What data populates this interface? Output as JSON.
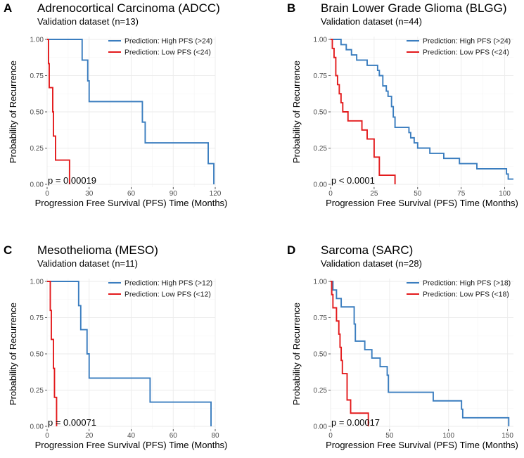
{
  "colors": {
    "high": "#3a7dbf",
    "low": "#e31a1c"
  },
  "ylabel": "Probability of Recurrence",
  "xlabel": "Progression Free Survival (PFS) Time (Months)",
  "chart_data": [
    {
      "type": "line",
      "letter": "A",
      "title": "Adrenocortical Carcinoma (ADCC)",
      "subtitle": "Validation dataset (n=13)",
      "xlabel": "Progression Free Survival (PFS) Time (Months)",
      "ylabel": "Probability of Recurrence",
      "xlim": [
        0,
        120
      ],
      "ylim": [
        0,
        1
      ],
      "xticks": [
        0,
        30,
        60,
        90,
        120
      ],
      "xtick_labels": [
        "0",
        "30",
        "60",
        "90",
        "120"
      ],
      "yticks": [
        0,
        0.25,
        0.5,
        0.75,
        1.0
      ],
      "ytick_labels": [
        "0.00",
        "0.25",
        "0.50",
        "0.75",
        "1.00"
      ],
      "pvalue": "p = 0.00019",
      "legend_position": "top-right",
      "series": [
        {
          "name": "Prediction: High PFS (>24)",
          "color_key": "high",
          "x": [
            0,
            25,
            29,
            30,
            68,
            70,
            115,
            119
          ],
          "y": [
            1.0,
            0.857,
            0.714,
            0.571,
            0.429,
            0.286,
            0.143,
            0.0
          ]
        },
        {
          "name": "Prediction: Low PFS (<24)",
          "color_key": "low",
          "x": [
            0,
            1,
            1.5,
            2,
            4,
            4.5,
            5,
            6,
            16
          ],
          "y": [
            1.0,
            0.833,
            0.667,
            0.667,
            0.5,
            0.333,
            0.333,
            0.167,
            0.0
          ]
        }
      ]
    },
    {
      "type": "line",
      "letter": "B",
      "title": "Brain Lower Grade Glioma (BLGG)",
      "subtitle": "Validation dataset (n=44)",
      "xlabel": "Progression Free Survival (PFS) Time (Months)",
      "ylabel": "Probability of Recurrence",
      "xlim": [
        0,
        105
      ],
      "ylim": [
        0,
        1
      ],
      "xticks": [
        0,
        25,
        50,
        75,
        100
      ],
      "xtick_labels": [
        "0",
        "25",
        "50",
        "75",
        "100"
      ],
      "yticks": [
        0,
        0.25,
        0.5,
        0.75,
        1.0
      ],
      "ytick_labels": [
        "0.00",
        "0.25",
        "0.50",
        "0.75",
        "1.00"
      ],
      "pvalue": "p < 0.0001",
      "legend_position": "top-right",
      "series": [
        {
          "name": "Prediction: High PFS (>24)",
          "color_key": "high",
          "x": [
            0,
            6,
            9,
            12,
            15,
            21,
            27,
            28,
            30,
            32,
            33,
            35,
            36,
            37,
            45,
            46,
            48,
            50,
            57,
            65,
            74,
            84,
            101,
            102,
            105
          ],
          "y": [
            1.0,
            0.964,
            0.929,
            0.893,
            0.857,
            0.821,
            0.786,
            0.75,
            0.679,
            0.643,
            0.607,
            0.536,
            0.464,
            0.393,
            0.357,
            0.321,
            0.286,
            0.25,
            0.214,
            0.179,
            0.143,
            0.107,
            0.071,
            0.036,
            0.036
          ]
        },
        {
          "name": "Prediction: Low PFS (<24)",
          "color_key": "low",
          "x": [
            0,
            1,
            2,
            3,
            4,
            5,
            6,
            7,
            8,
            10,
            13,
            18,
            21,
            25,
            28,
            37
          ],
          "y": [
            1.0,
            0.938,
            0.875,
            0.75,
            0.688,
            0.625,
            0.563,
            0.5,
            0.5,
            0.438,
            0.438,
            0.375,
            0.313,
            0.188,
            0.063,
            0.0
          ]
        }
      ]
    },
    {
      "type": "line",
      "letter": "C",
      "title": "Mesothelioma (MESO)",
      "subtitle": "Validation dataset (n=11)",
      "xlabel": "Progression Free Survival (PFS) Time (Months)",
      "ylabel": "Probability of Recurrence",
      "xlim": [
        0,
        80
      ],
      "ylim": [
        0,
        1
      ],
      "xticks": [
        0,
        20,
        40,
        60,
        80
      ],
      "xtick_labels": [
        "0",
        "20",
        "40",
        "60",
        "80"
      ],
      "yticks": [
        0,
        0.25,
        0.5,
        0.75,
        1.0
      ],
      "ytick_labels": [
        "0.00",
        "0.25",
        "0.50",
        "0.75",
        "1.00"
      ],
      "pvalue": "p = 0.00071",
      "legend_position": "top-right",
      "series": [
        {
          "name": "Prediction: High PFS (>12)",
          "color_key": "high",
          "x": [
            0,
            15,
            16,
            19,
            20,
            49,
            78
          ],
          "y": [
            1.0,
            0.833,
            0.667,
            0.5,
            0.333,
            0.167,
            0.0
          ]
        },
        {
          "name": "Prediction: Low PFS (<12)",
          "color_key": "low",
          "x": [
            0,
            1.5,
            2,
            2.5,
            3,
            3.5,
            4.5
          ],
          "y": [
            1.0,
            0.8,
            0.6,
            0.6,
            0.4,
            0.2,
            0.0
          ]
        }
      ]
    },
    {
      "type": "line",
      "letter": "D",
      "title": "Sarcoma (SARC)",
      "subtitle": "Validation dataset (n=28)",
      "xlabel": "Progression Free Survival (PFS) Time (Months)",
      "ylabel": "Probability of Recurrence",
      "xlim": [
        0,
        155
      ],
      "ylim": [
        0,
        1
      ],
      "xticks": [
        0,
        50,
        100,
        150
      ],
      "xtick_labels": [
        "0",
        "50",
        "100",
        "150"
      ],
      "yticks": [
        0,
        0.25,
        0.5,
        0.75,
        1.0
      ],
      "ytick_labels": [
        "0.00",
        "0.25",
        "0.50",
        "0.75",
        "1.00"
      ],
      "pvalue": "p = 0.00017",
      "legend_position": "top-right",
      "series": [
        {
          "name": "Prediction: High PFS (>18)",
          "color_key": "high",
          "x": [
            0,
            2,
            5,
            9,
            20,
            21,
            29,
            35,
            42,
            48,
            49,
            87,
            111,
            112,
            151
          ],
          "y": [
            1.0,
            0.941,
            0.882,
            0.824,
            0.706,
            0.588,
            0.529,
            0.471,
            0.412,
            0.353,
            0.235,
            0.176,
            0.118,
            0.059,
            0.0
          ]
        },
        {
          "name": "Prediction: Low PFS (<18)",
          "color_key": "low",
          "x": [
            0,
            1,
            2,
            5,
            7,
            8,
            9,
            10,
            14,
            17,
            32
          ],
          "y": [
            1.0,
            0.909,
            0.818,
            0.727,
            0.636,
            0.545,
            0.455,
            0.364,
            0.182,
            0.091,
            0.0
          ]
        }
      ]
    }
  ]
}
